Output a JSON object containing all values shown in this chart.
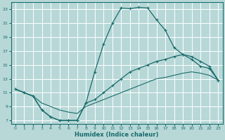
{
  "xlabel": "Humidex (Indice chaleur)",
  "xlim": [
    -0.5,
    23.5
  ],
  "ylim": [
    6.5,
    24
  ],
  "yticks": [
    7,
    9,
    11,
    13,
    15,
    17,
    19,
    21,
    23
  ],
  "xticks": [
    0,
    1,
    2,
    3,
    4,
    5,
    6,
    7,
    8,
    9,
    10,
    11,
    12,
    13,
    14,
    15,
    16,
    17,
    18,
    19,
    20,
    21,
    22,
    23
  ],
  "bg_color": "#b8d8d8",
  "line_color": "#1a6b6b",
  "grid_color": "#e0f0f0",
  "line1_x": [
    0,
    1,
    2,
    3,
    4,
    5,
    6,
    7,
    8,
    9,
    10,
    11,
    12,
    13,
    14,
    15,
    16,
    17,
    18,
    19,
    20,
    21,
    22,
    23
  ],
  "line1_y": [
    11.5,
    11.0,
    10.5,
    8.5,
    7.5,
    7.0,
    7.0,
    7.0,
    9.5,
    14.0,
    18.0,
    21.0,
    23.2,
    23.1,
    23.3,
    23.2,
    21.5,
    20.0,
    17.5,
    16.5,
    15.8,
    14.8,
    14.5,
    12.8
  ],
  "line2_x": [
    0,
    1,
    2,
    3,
    4,
    5,
    6,
    7,
    8,
    9,
    10,
    11,
    12,
    13,
    14,
    15,
    16,
    17,
    18,
    19,
    20,
    21,
    22,
    23
  ],
  "line2_y": [
    11.5,
    11.0,
    10.5,
    8.5,
    7.5,
    7.0,
    7.0,
    7.0,
    9.5,
    10.0,
    11.0,
    12.0,
    13.0,
    14.0,
    14.5,
    15.0,
    15.5,
    15.8,
    16.2,
    16.5,
    16.2,
    15.5,
    14.8,
    12.8
  ],
  "line3_x": [
    0,
    1,
    2,
    3,
    4,
    5,
    6,
    7,
    8,
    9,
    10,
    11,
    12,
    13,
    14,
    15,
    16,
    17,
    18,
    19,
    20,
    21,
    22,
    23
  ],
  "line3_y": [
    11.5,
    11.0,
    10.5,
    9.5,
    9.0,
    8.5,
    8.2,
    8.0,
    9.0,
    9.5,
    10.0,
    10.5,
    11.0,
    11.5,
    12.0,
    12.5,
    13.0,
    13.2,
    13.5,
    13.8,
    14.0,
    13.8,
    13.5,
    12.8
  ]
}
